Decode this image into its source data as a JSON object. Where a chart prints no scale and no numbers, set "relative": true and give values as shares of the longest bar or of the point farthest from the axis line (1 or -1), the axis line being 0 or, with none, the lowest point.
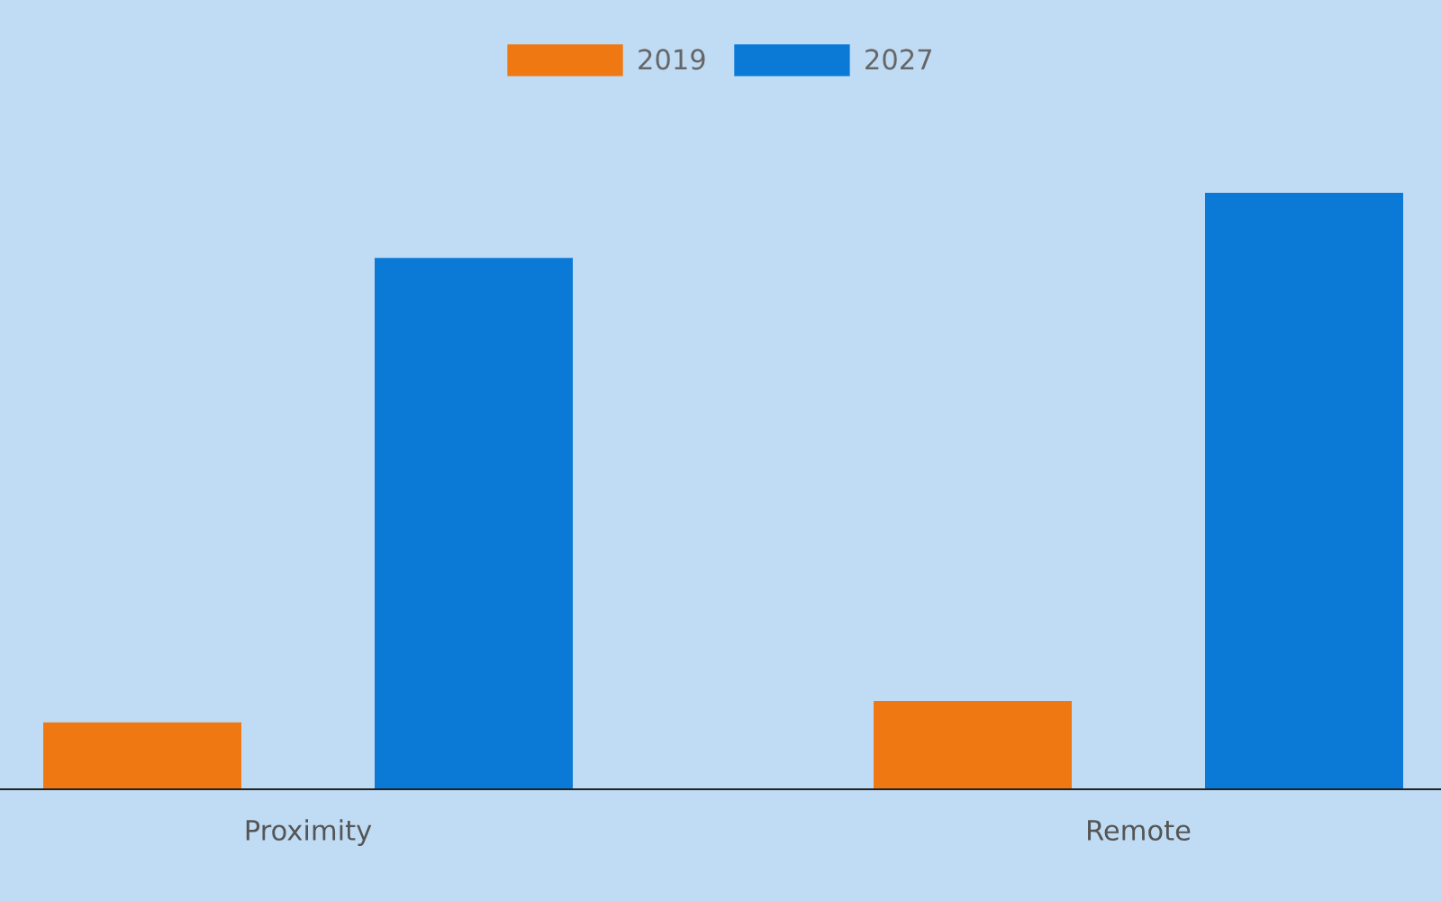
{
  "chart_data": {
    "type": "bar",
    "relative": true,
    "categories": [
      "Proximity",
      "Remote"
    ],
    "series": [
      {
        "name": "2019",
        "color": "#f07812",
        "values": [
          0.112,
          0.148
        ]
      },
      {
        "name": "2027",
        "color": "#0a7ad6",
        "values": [
          0.891,
          1
        ]
      }
    ],
    "legend": "top",
    "grid": false
  }
}
